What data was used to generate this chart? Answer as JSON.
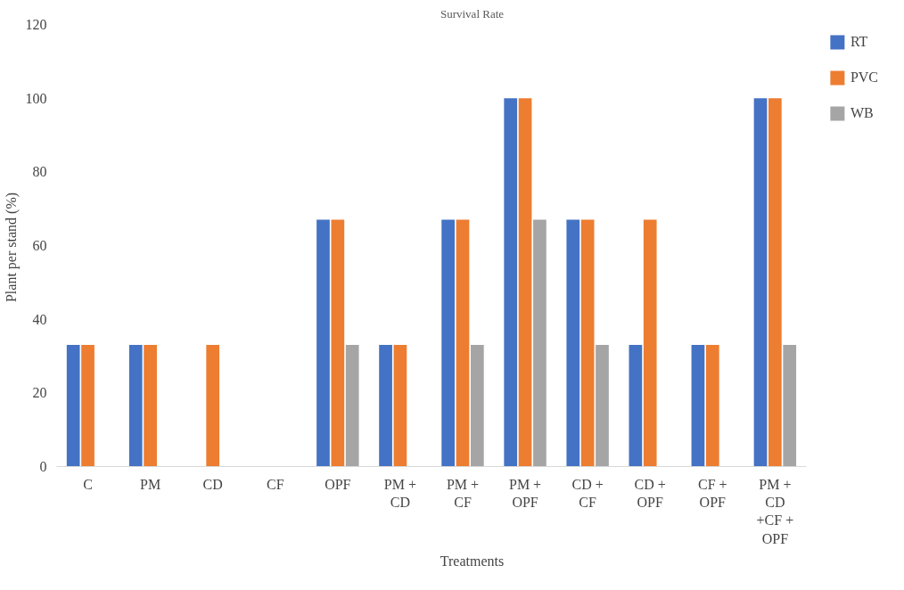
{
  "chart_data": {
    "type": "bar",
    "title": "Survival Rate",
    "xlabel": "Treatments",
    "ylabel": "Plant  per stand (%)",
    "categories": [
      "C",
      "PM",
      "CD",
      "CF",
      "OPF",
      "PM + CD",
      "PM + CF",
      "PM + OPF",
      "CD + CF",
      "CD + OPF",
      "CF + OPF",
      "PM + CD +CF + OPF"
    ],
    "series": [
      {
        "name": "RT",
        "color": "#4472c4",
        "values": [
          33,
          33,
          0,
          0,
          67,
          33,
          67,
          100,
          67,
          33,
          33,
          100
        ]
      },
      {
        "name": "PVC",
        "color": "#ed7d31",
        "values": [
          33,
          33,
          33,
          0,
          67,
          33,
          67,
          100,
          67,
          67,
          33,
          100
        ]
      },
      {
        "name": "WB",
        "color": "#a5a5a5",
        "values": [
          0,
          0,
          0,
          0,
          33,
          0,
          33,
          67,
          33,
          0,
          0,
          33
        ]
      }
    ],
    "ylim": [
      0,
      120
    ],
    "yticks": [
      0,
      20,
      40,
      60,
      80,
      100,
      120
    ],
    "grid": false,
    "legend": "top right"
  }
}
